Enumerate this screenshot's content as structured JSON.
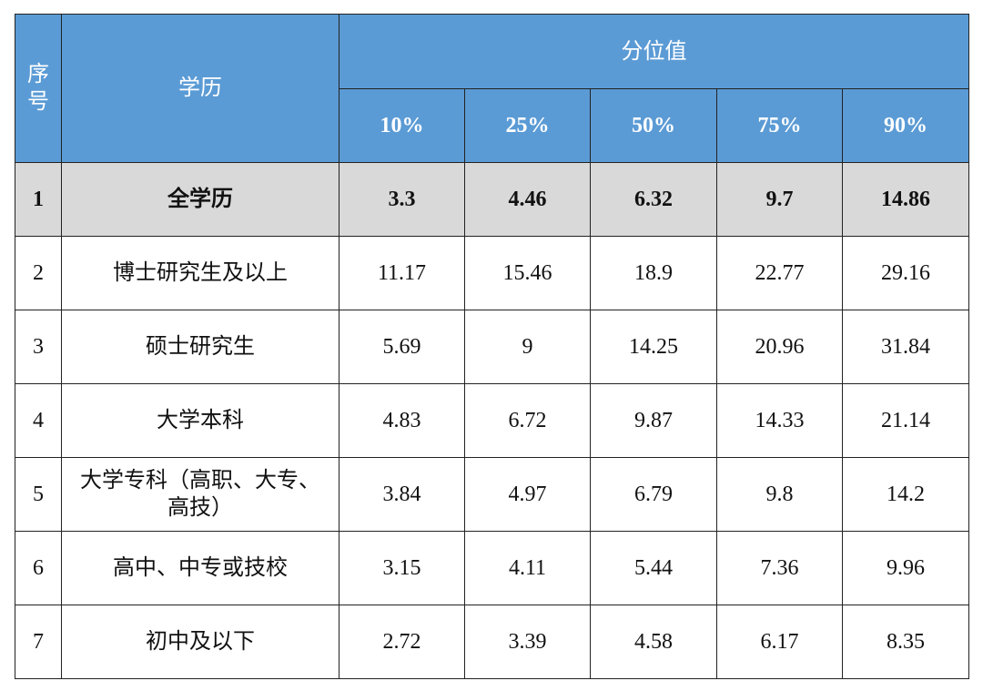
{
  "header": {
    "seq": "序号",
    "education": "学历",
    "percentile": "分位值",
    "columns": [
      "10%",
      "25%",
      "50%",
      "75%",
      "90%"
    ]
  },
  "rows": [
    {
      "seq": "1",
      "education": "全学历",
      "values": [
        "3.3",
        "4.46",
        "6.32",
        "9.7",
        "14.86"
      ]
    },
    {
      "seq": "2",
      "education": "博士研究生及以上",
      "values": [
        "11.17",
        "15.46",
        "18.9",
        "22.77",
        "29.16"
      ]
    },
    {
      "seq": "3",
      "education": "硕士研究生",
      "values": [
        "5.69",
        "9",
        "14.25",
        "20.96",
        "31.84"
      ]
    },
    {
      "seq": "4",
      "education": "大学本科",
      "values": [
        "4.83",
        "6.72",
        "9.87",
        "14.33",
        "21.14"
      ]
    },
    {
      "seq": "5",
      "education": "大学专科（高职、大专、高技）",
      "values": [
        "3.84",
        "4.97",
        "6.79",
        "9.8",
        "14.2"
      ]
    },
    {
      "seq": "6",
      "education": "高中、中专或技校",
      "values": [
        "3.15",
        "4.11",
        "5.44",
        "7.36",
        "9.96"
      ]
    },
    {
      "seq": "7",
      "education": "初中及以下",
      "values": [
        "2.72",
        "3.39",
        "4.58",
        "6.17",
        "8.35"
      ]
    }
  ]
}
